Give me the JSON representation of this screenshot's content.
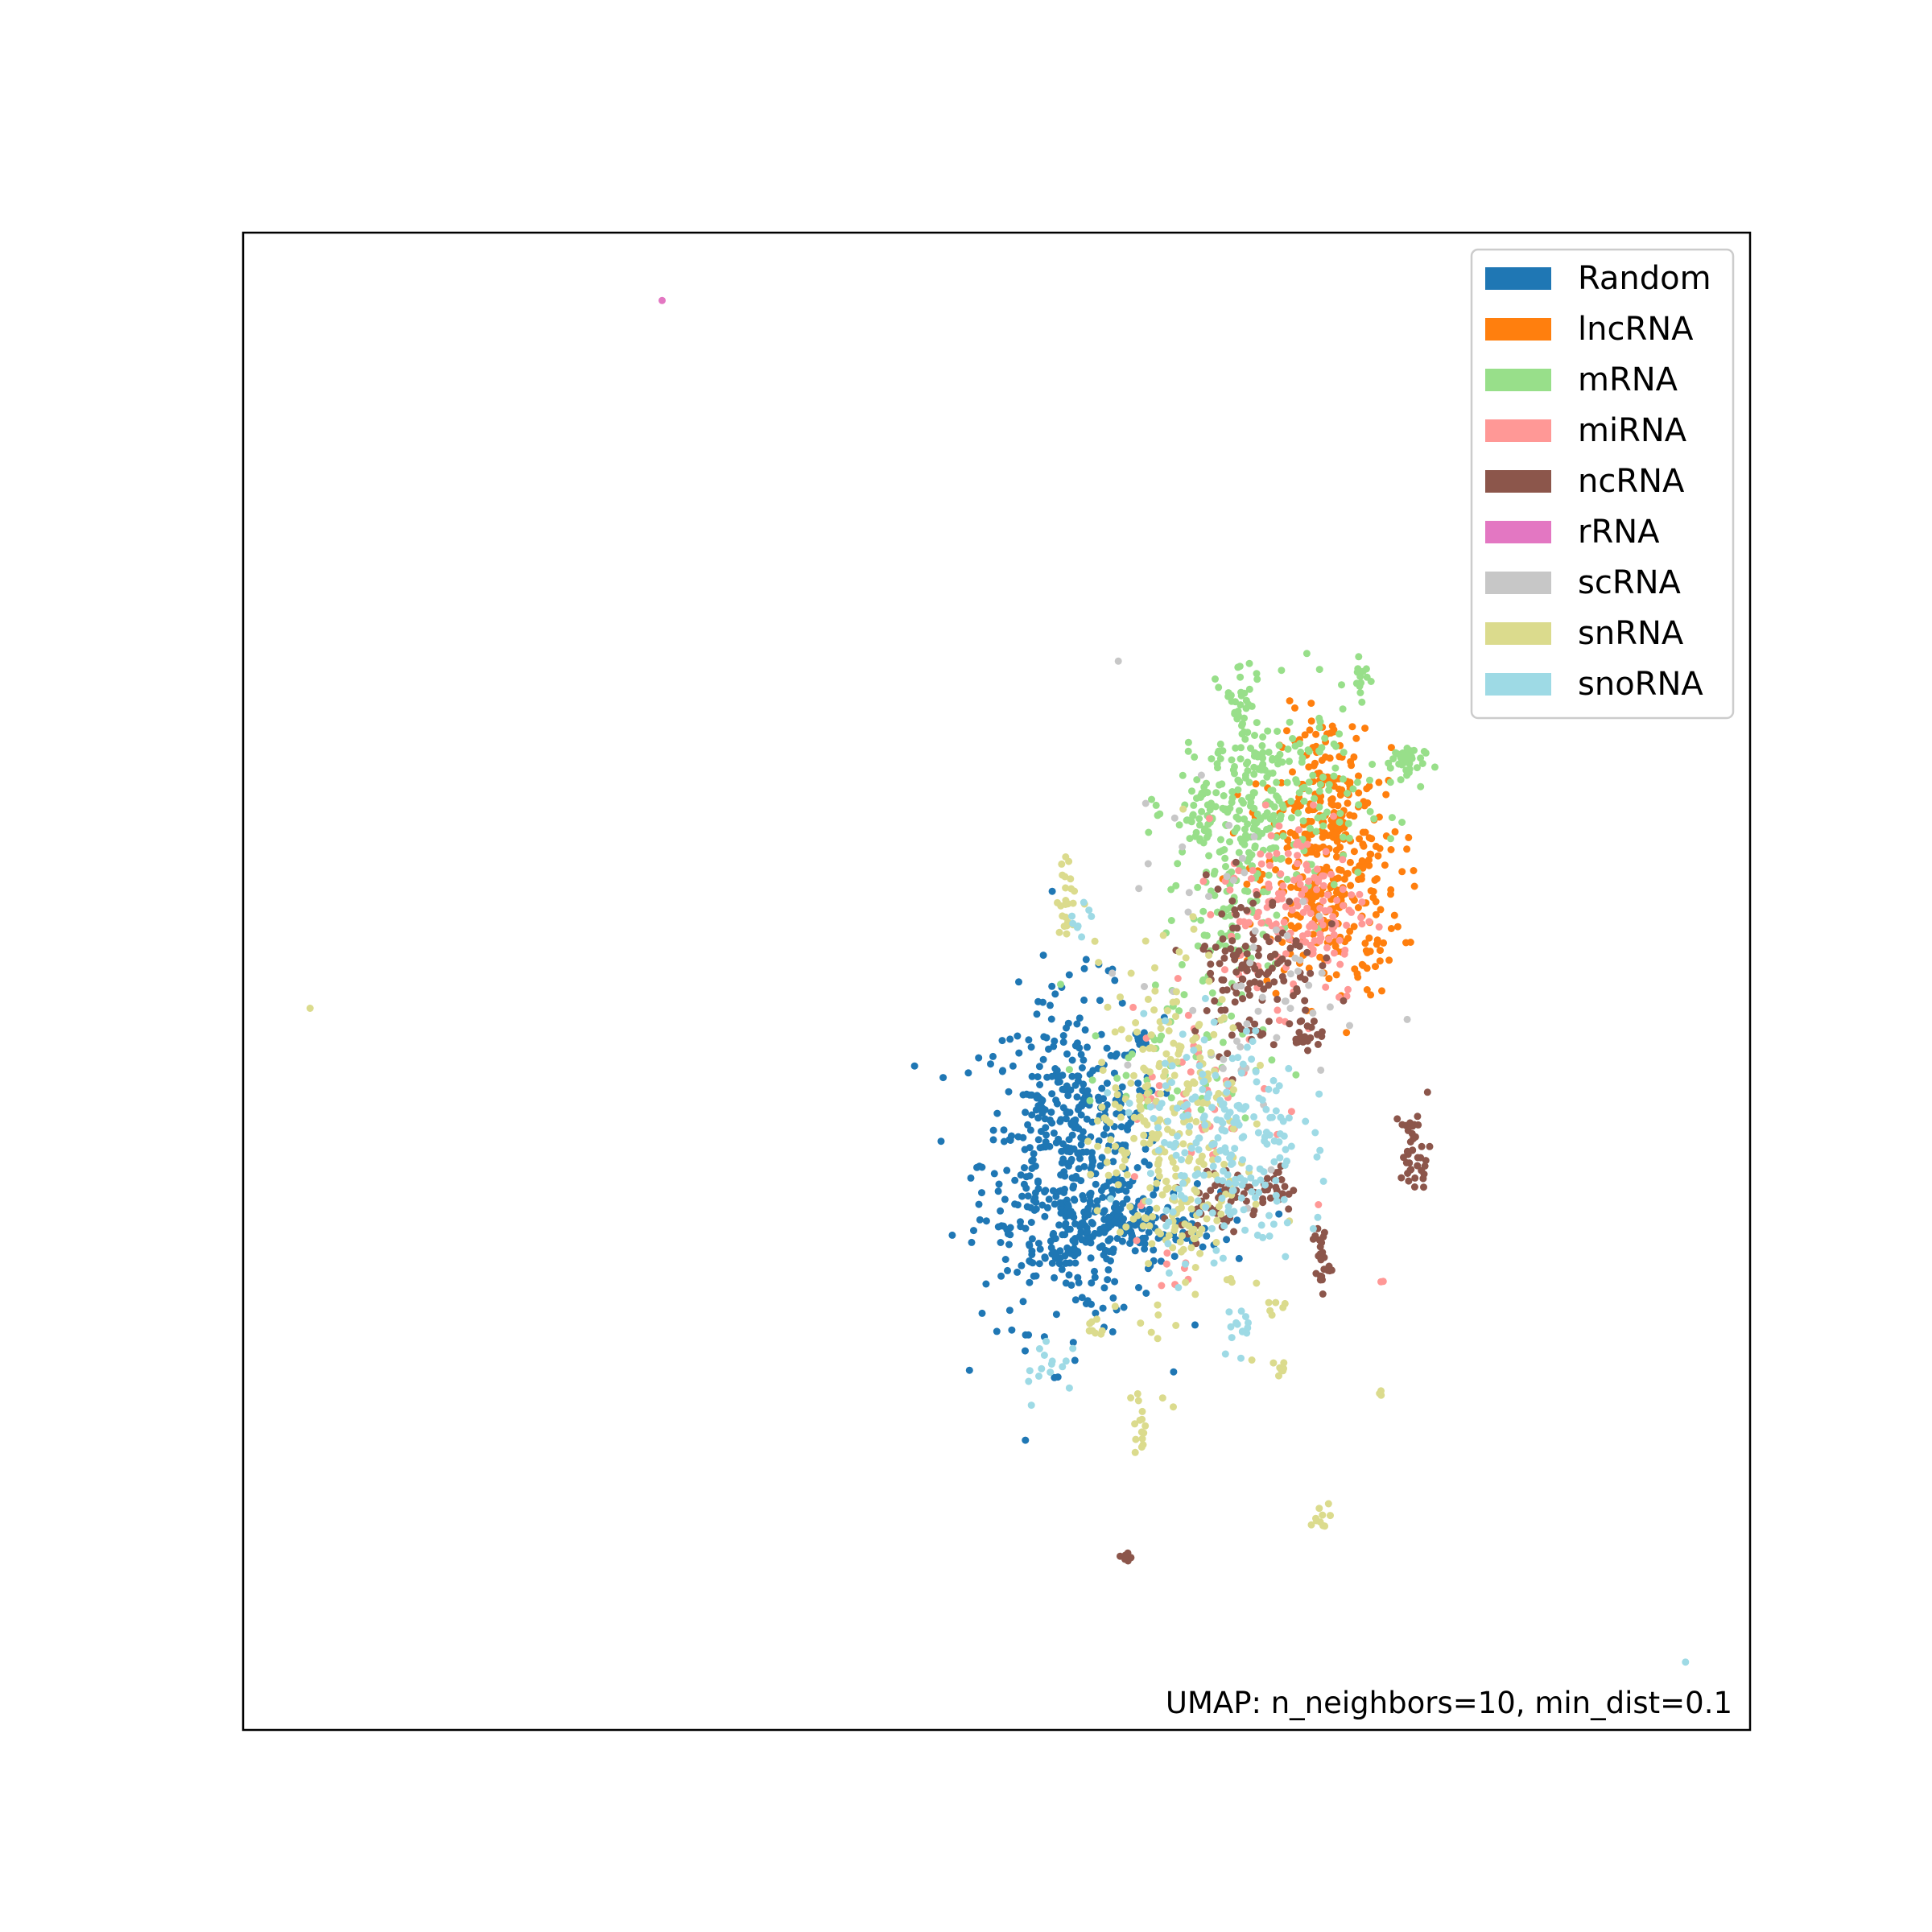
{
  "chart_data": {
    "type": "scatter",
    "title": "",
    "xlabel": "",
    "ylabel": "",
    "axis_ticks": false,
    "grid": false,
    "legend_position": "top-right",
    "xlim": [
      0,
      100
    ],
    "ylim": [
      0,
      100
    ],
    "annotation": "UMAP: n_neighbors=10, min_dist=0.1",
    "series": [
      {
        "name": "Random",
        "color": "#1f77b4",
        "clusters": [
          {
            "cx": 55,
            "cy": 38,
            "sx": 3.0,
            "sy": 5.5,
            "n": 520
          },
          {
            "cx": 58,
            "cy": 33.5,
            "sx": 3.4,
            "sy": 1.2,
            "n": 160
          }
        ]
      },
      {
        "name": "lncRNA",
        "color": "#ff7f0e",
        "clusters": [
          {
            "cx": 72,
            "cy": 56,
            "sx": 2.4,
            "sy": 3.6,
            "n": 260
          },
          {
            "cx": 72,
            "cy": 62,
            "sx": 1.6,
            "sy": 3.0,
            "n": 150
          }
        ]
      },
      {
        "name": "mRNA",
        "color": "#98df8a",
        "clusters": [
          {
            "cx": 68,
            "cy": 62,
            "sx": 3.0,
            "sy": 3.4,
            "n": 260
          },
          {
            "cx": 65.5,
            "cy": 57,
            "sx": 1.6,
            "sy": 3.2,
            "n": 90
          },
          {
            "cx": 66.2,
            "cy": 69,
            "sx": 0.5,
            "sy": 1.3,
            "n": 25
          },
          {
            "cx": 74.2,
            "cy": 70.5,
            "sx": 0.3,
            "sy": 0.8,
            "n": 14
          },
          {
            "cx": 76.8,
            "cy": 64.5,
            "sx": 0.8,
            "sy": 0.7,
            "n": 35
          },
          {
            "cx": 63.2,
            "cy": 60.5,
            "sx": 0.6,
            "sy": 1.0,
            "n": 25
          },
          {
            "cx": 62,
            "cy": 45,
            "sx": 3.0,
            "sy": 3.0,
            "n": 60
          }
        ]
      },
      {
        "name": "miRNA",
        "color": "#ff9896",
        "clusters": [
          {
            "cx": 70,
            "cy": 55,
            "sx": 2.4,
            "sy": 3.2,
            "n": 160
          },
          {
            "cx": 64,
            "cy": 42,
            "sx": 2.6,
            "sy": 3.2,
            "n": 45
          },
          {
            "cx": 62,
            "cy": 31,
            "sx": 0.8,
            "sy": 0.8,
            "n": 8
          },
          {
            "cx": 75.5,
            "cy": 30,
            "sx": 0.1,
            "sy": 0.1,
            "n": 2
          }
        ]
      },
      {
        "name": "ncRNA",
        "color": "#8c564b",
        "clusters": [
          {
            "cx": 67,
            "cy": 51,
            "sx": 2.2,
            "sy": 2.8,
            "n": 130
          },
          {
            "cx": 64.5,
            "cy": 35.5,
            "sx": 1.2,
            "sy": 1.0,
            "n": 45
          },
          {
            "cx": 77.8,
            "cy": 38.5,
            "sx": 0.5,
            "sy": 1.5,
            "n": 40
          },
          {
            "cx": 68.5,
            "cy": 36,
            "sx": 0.7,
            "sy": 0.8,
            "n": 25
          },
          {
            "cx": 71.5,
            "cy": 31.5,
            "sx": 0.3,
            "sy": 1.3,
            "n": 25
          },
          {
            "cx": 70.5,
            "cy": 46.5,
            "sx": 0.6,
            "sy": 0.5,
            "n": 20
          },
          {
            "cx": 58.5,
            "cy": 11.5,
            "sx": 0.2,
            "sy": 0.3,
            "n": 6
          }
        ]
      },
      {
        "name": "rRNA",
        "color": "#e377c2",
        "clusters": [
          {
            "cx": 27.7,
            "cy": 95.5,
            "sx": 0.05,
            "sy": 0.05,
            "n": 1
          }
        ]
      },
      {
        "name": "scRNA",
        "color": "#c7c7c7",
        "clusters": [
          {
            "cx": 66,
            "cy": 50,
            "sx": 4.0,
            "sy": 6.0,
            "n": 60
          }
        ]
      },
      {
        "name": "snRNA",
        "color": "#dbdb8d",
        "clusters": [
          {
            "cx": 61.5,
            "cy": 40,
            "sx": 2.4,
            "sy": 6.0,
            "n": 300
          },
          {
            "cx": 54.8,
            "cy": 55.5,
            "sx": 0.4,
            "sy": 1.3,
            "n": 25
          },
          {
            "cx": 59.5,
            "cy": 20.5,
            "sx": 0.3,
            "sy": 1.2,
            "n": 15
          },
          {
            "cx": 71.6,
            "cy": 14,
            "sx": 0.4,
            "sy": 0.6,
            "n": 10
          },
          {
            "cx": 68.8,
            "cy": 24,
            "sx": 0.3,
            "sy": 0.4,
            "n": 8
          },
          {
            "cx": 56.5,
            "cy": 27,
            "sx": 0.3,
            "sy": 0.6,
            "n": 8
          },
          {
            "cx": 68.5,
            "cy": 28.5,
            "sx": 0.3,
            "sy": 0.4,
            "n": 6
          },
          {
            "cx": 75.5,
            "cy": 22.5,
            "sx": 0.1,
            "sy": 0.2,
            "n": 3
          },
          {
            "cx": 4.5,
            "cy": 48.2,
            "sx": 0.05,
            "sy": 0.05,
            "n": 1
          }
        ]
      },
      {
        "name": "snoRNA",
        "color": "#9edae5",
        "clusters": [
          {
            "cx": 65,
            "cy": 39,
            "sx": 2.6,
            "sy": 4.0,
            "n": 220
          },
          {
            "cx": 53.5,
            "cy": 24.5,
            "sx": 0.9,
            "sy": 1.2,
            "n": 15
          },
          {
            "cx": 66,
            "cy": 27,
            "sx": 0.6,
            "sy": 0.8,
            "n": 12
          },
          {
            "cx": 56,
            "cy": 54.5,
            "sx": 0.5,
            "sy": 0.6,
            "n": 8
          },
          {
            "cx": 95.8,
            "cy": 4.6,
            "sx": 0.05,
            "sy": 0.05,
            "n": 1
          }
        ]
      }
    ]
  }
}
